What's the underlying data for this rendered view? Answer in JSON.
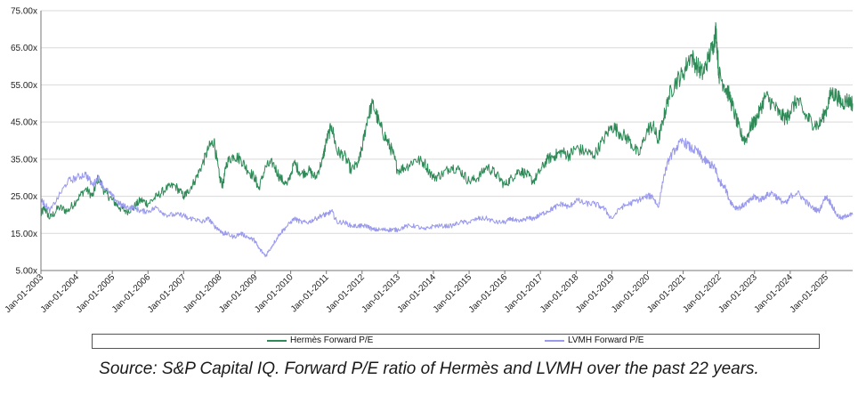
{
  "caption": "Source: S&P Capital IQ. Forward P/E ratio of Hermès and LVMH over the past 22 years.",
  "colors": {
    "hermes": "#2e8b57",
    "lvmh": "#9999ee",
    "grid": "#d9d9d9",
    "axis": "#777777"
  },
  "chart_data": {
    "type": "line",
    "ylim": [
      5,
      75
    ],
    "y_ticks": [
      "75.00x",
      "65.00x",
      "55.00x",
      "45.00x",
      "35.00x",
      "25.00x",
      "15.00x",
      "5.00x"
    ],
    "y_tick_values": [
      75,
      65,
      55,
      45,
      35,
      25,
      15,
      5
    ],
    "x_ticks": [
      "Jan-01-2003",
      "Jan-01-2004",
      "Jan-01-2005",
      "Jan-01-2006",
      "Jan-01-2007",
      "Jan-01-2008",
      "Jan-01-2009",
      "Jan-01-2010",
      "Jan-01-2011",
      "Jan-01-2012",
      "Jan-01-2013",
      "Jan-01-2014",
      "Jan-01-2015",
      "Jan-01-2016",
      "Jan-01-2017",
      "Jan-01-2018",
      "Jan-01-2019",
      "Jan-01-2020",
      "Jan-01-2021",
      "Jan-01-2022",
      "Jan-01-2023",
      "Jan-01-2024",
      "Jan-01-2025"
    ],
    "x_tick_values": [
      2003,
      2004,
      2005,
      2006,
      2007,
      2008,
      2009,
      2010,
      2011,
      2012,
      2013,
      2014,
      2015,
      2016,
      2017,
      2018,
      2019,
      2020,
      2021,
      2022,
      2023,
      2024,
      2025
    ],
    "xlim": [
      2003.0,
      2025.75
    ],
    "grid": "horizontal",
    "legend_position": "bottom",
    "series": [
      {
        "name": "Hermès Forward P/E",
        "color": "#2e8b57",
        "x": [
          2003.0,
          2003.1,
          2003.25,
          2003.5,
          2003.75,
          2004.0,
          2004.25,
          2004.45,
          2004.6,
          2004.8,
          2005.0,
          2005.2,
          2005.4,
          2005.6,
          2005.8,
          2006.0,
          2006.25,
          2006.5,
          2006.75,
          2007.0,
          2007.1,
          2007.3,
          2007.5,
          2007.7,
          2007.85,
          2008.0,
          2008.1,
          2008.2,
          2008.4,
          2008.6,
          2008.8,
          2009.0,
          2009.1,
          2009.3,
          2009.5,
          2009.7,
          2009.9,
          2010.1,
          2010.3,
          2010.5,
          2010.7,
          2010.9,
          2011.0,
          2011.15,
          2011.3,
          2011.5,
          2011.7,
          2011.9,
          2012.0,
          2012.15,
          2012.3,
          2012.5,
          2012.7,
          2012.85,
          2013.0,
          2013.25,
          2013.5,
          2013.75,
          2014.0,
          2014.25,
          2014.5,
          2014.75,
          2015.0,
          2015.25,
          2015.5,
          2015.75,
          2016.0,
          2016.2,
          2016.4,
          2016.6,
          2016.8,
          2017.0,
          2017.2,
          2017.4,
          2017.6,
          2017.8,
          2018.0,
          2018.25,
          2018.5,
          2018.75,
          2019.0,
          2019.25,
          2019.5,
          2019.75,
          2020.0,
          2020.15,
          2020.3,
          2020.45,
          2020.6,
          2020.8,
          2021.0,
          2021.2,
          2021.4,
          2021.55,
          2021.7,
          2021.85,
          2021.92,
          2022.0,
          2022.15,
          2022.3,
          2022.45,
          2022.6,
          2022.75,
          2022.9,
          2023.0,
          2023.15,
          2023.3,
          2023.5,
          2023.7,
          2023.9,
          2024.0,
          2024.2,
          2024.4,
          2024.6,
          2024.8,
          2025.0,
          2025.15,
          2025.3,
          2025.45,
          2025.6,
          2025.75
        ],
        "values": [
          20,
          22,
          19,
          22,
          21,
          24,
          27,
          25,
          30,
          26,
          24,
          22,
          21,
          22,
          24,
          23,
          25,
          27,
          28,
          25,
          26,
          29,
          33,
          38,
          40,
          30,
          28,
          34,
          36,
          35,
          32,
          30,
          27,
          33,
          34,
          30,
          28,
          34,
          31,
          32,
          30,
          35,
          40,
          44,
          37,
          36,
          32,
          34,
          38,
          46,
          50,
          44,
          40,
          37,
          32,
          33,
          35,
          34,
          30,
          31,
          33,
          32,
          29,
          30,
          33,
          31,
          28,
          30,
          32,
          31,
          29,
          32,
          35,
          36,
          37,
          36,
          38,
          37,
          36,
          40,
          44,
          42,
          40,
          36,
          43,
          44,
          40,
          46,
          52,
          56,
          58,
          63,
          60,
          58,
          62,
          66,
          70,
          58,
          55,
          52,
          47,
          42,
          40,
          44,
          45,
          48,
          52,
          50,
          47,
          46,
          48,
          51,
          47,
          45,
          44,
          48,
          53,
          52,
          50,
          51,
          50
        ]
      },
      {
        "name": "LVMH Forward P/E",
        "color": "#9999ee",
        "x": [
          2003.0,
          2003.1,
          2003.25,
          2003.5,
          2003.75,
          2004.0,
          2004.25,
          2004.45,
          2004.6,
          2004.8,
          2005.0,
          2005.2,
          2005.4,
          2005.6,
          2005.8,
          2006.0,
          2006.25,
          2006.5,
          2006.75,
          2007.0,
          2007.1,
          2007.3,
          2007.5,
          2007.7,
          2007.85,
          2008.0,
          2008.1,
          2008.2,
          2008.4,
          2008.6,
          2008.8,
          2009.0,
          2009.1,
          2009.3,
          2009.5,
          2009.7,
          2009.9,
          2010.1,
          2010.3,
          2010.5,
          2010.7,
          2010.9,
          2011.0,
          2011.15,
          2011.3,
          2011.5,
          2011.7,
          2011.9,
          2012.0,
          2012.15,
          2012.3,
          2012.5,
          2012.7,
          2012.85,
          2013.0,
          2013.25,
          2013.5,
          2013.75,
          2014.0,
          2014.25,
          2014.5,
          2014.75,
          2015.0,
          2015.25,
          2015.5,
          2015.75,
          2016.0,
          2016.2,
          2016.4,
          2016.6,
          2016.8,
          2017.0,
          2017.2,
          2017.4,
          2017.6,
          2017.8,
          2018.0,
          2018.25,
          2018.5,
          2018.75,
          2019.0,
          2019.25,
          2019.5,
          2019.75,
          2020.0,
          2020.15,
          2020.3,
          2020.45,
          2020.6,
          2020.8,
          2021.0,
          2021.2,
          2021.4,
          2021.55,
          2021.7,
          2021.85,
          2021.92,
          2022.0,
          2022.15,
          2022.3,
          2022.45,
          2022.6,
          2022.75,
          2022.9,
          2023.0,
          2023.15,
          2023.3,
          2023.5,
          2023.7,
          2023.9,
          2024.0,
          2024.2,
          2024.4,
          2024.6,
          2024.8,
          2025.0,
          2025.15,
          2025.3,
          2025.45,
          2025.6,
          2025.75
        ],
        "values": [
          24,
          23,
          21,
          25,
          29,
          30,
          31,
          28,
          30,
          27,
          25,
          23,
          22,
          22,
          21,
          21,
          22,
          20,
          20,
          20,
          19,
          19,
          18,
          19,
          17,
          16,
          15,
          15,
          14,
          15,
          14,
          13,
          11,
          9,
          12,
          15,
          17,
          19,
          18,
          18,
          19,
          20,
          20,
          21,
          18,
          18,
          17,
          17,
          17,
          17,
          16,
          16,
          16,
          16,
          16,
          17,
          17,
          16,
          17,
          17,
          17,
          18,
          18,
          19,
          19,
          18,
          18,
          19,
          18,
          19,
          19,
          20,
          21,
          22,
          23,
          22,
          24,
          23,
          23,
          22,
          19,
          22,
          23,
          24,
          25,
          25,
          22,
          30,
          35,
          38,
          40,
          38,
          37,
          35,
          34,
          33,
          32,
          29,
          28,
          24,
          22,
          22,
          23,
          24,
          25,
          24,
          25,
          26,
          24,
          23,
          25,
          26,
          24,
          22,
          21,
          25,
          23,
          20,
          19,
          20,
          20
        ]
      }
    ]
  }
}
